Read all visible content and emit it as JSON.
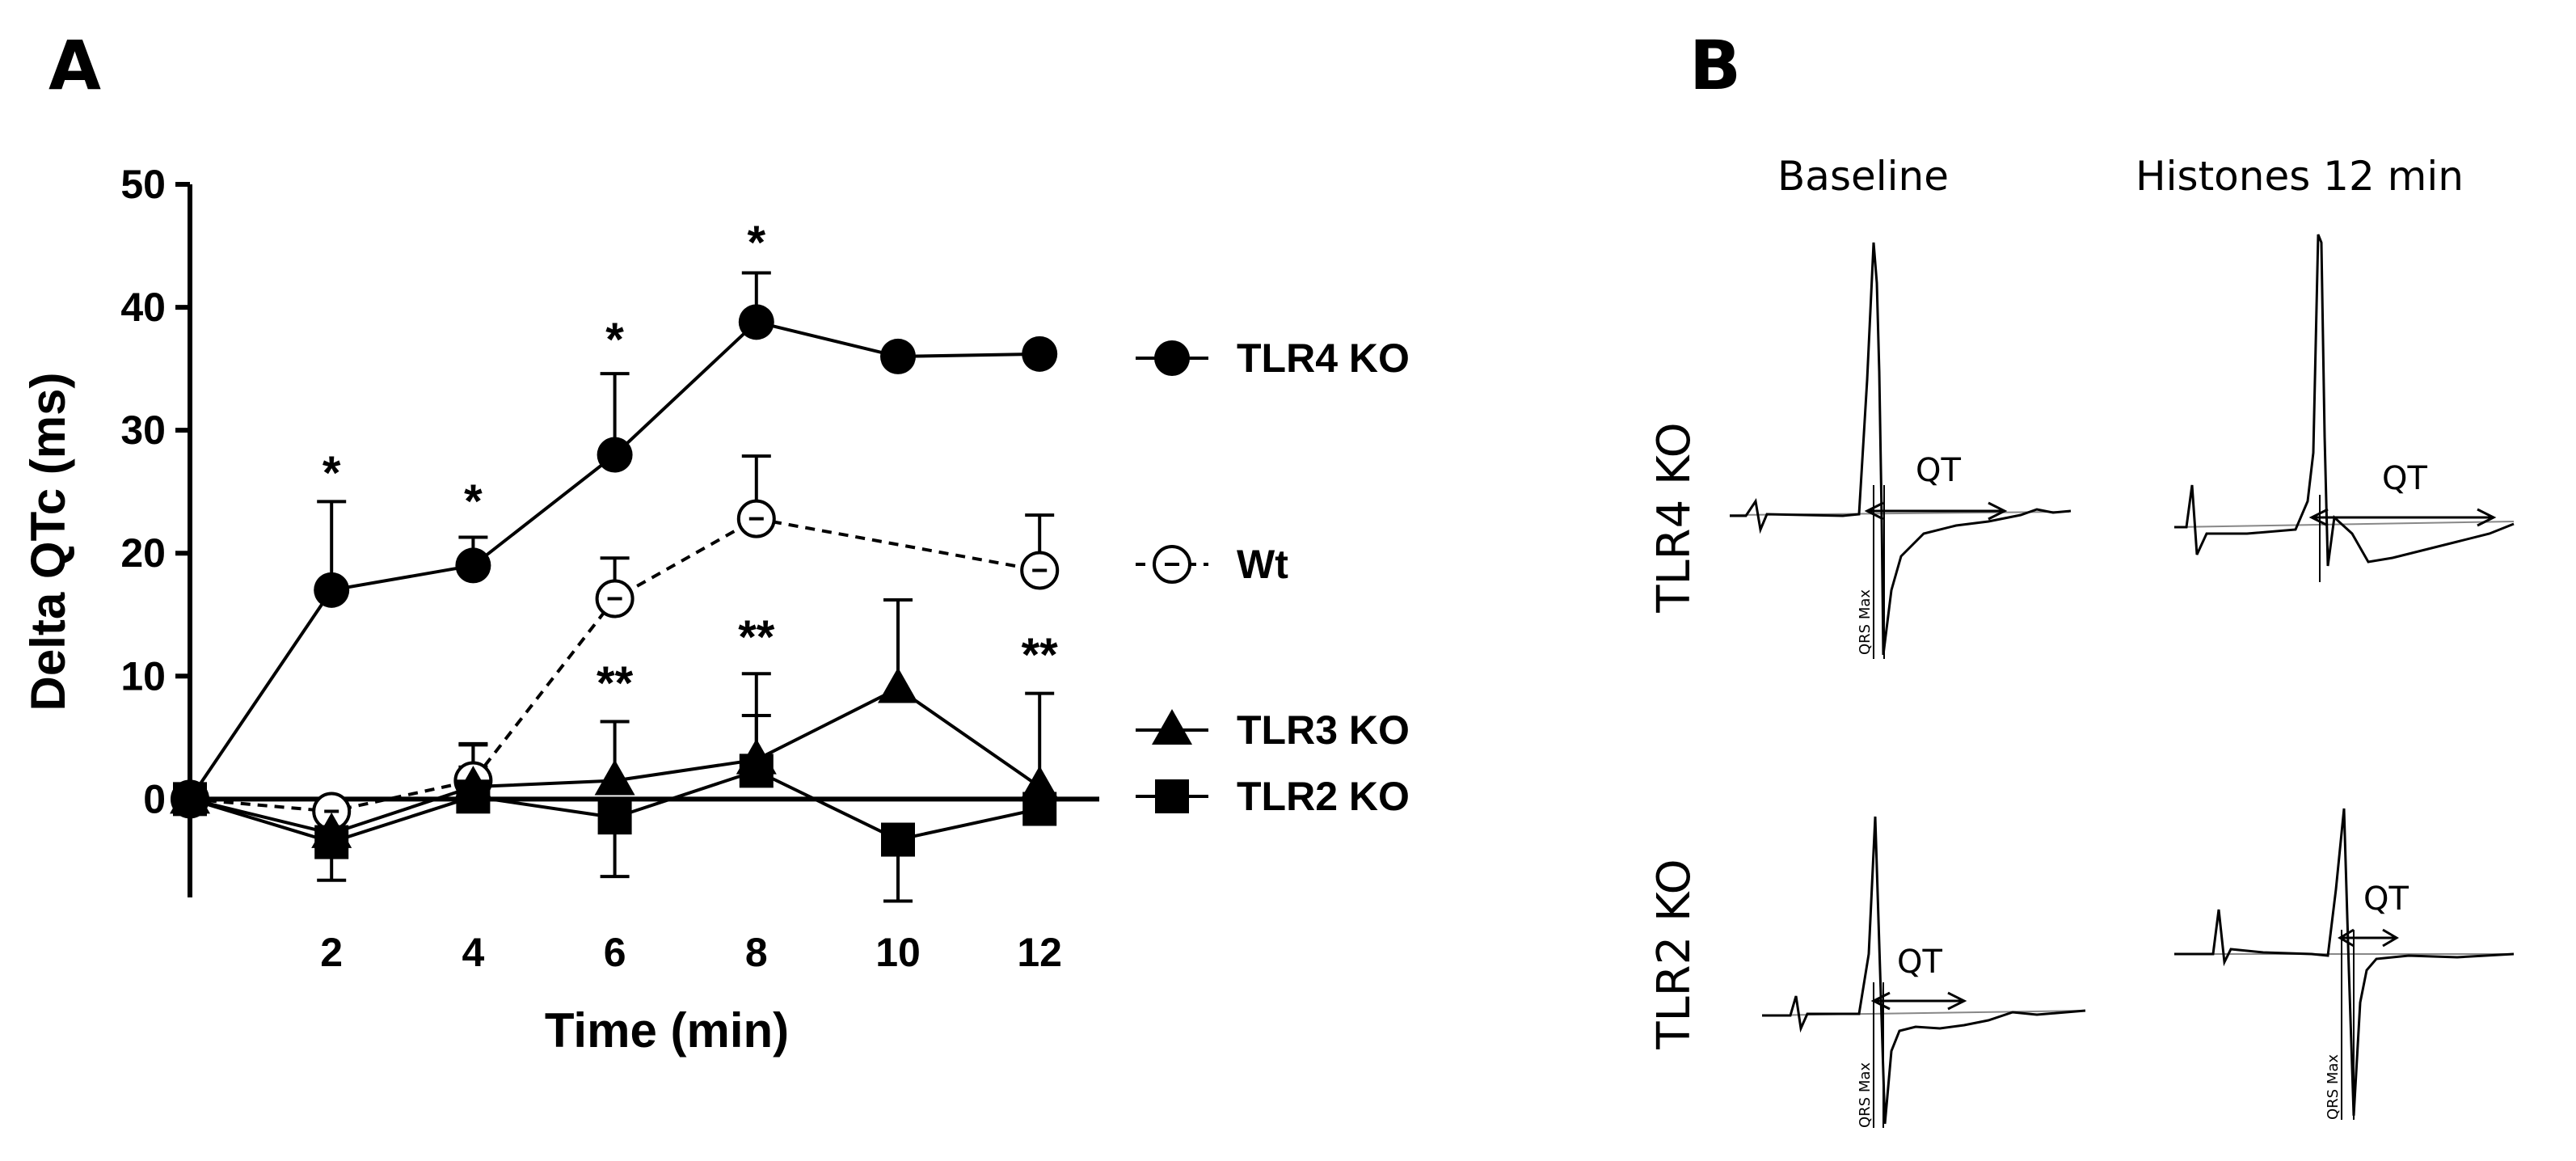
{
  "panels": {
    "a": "A",
    "b": "B"
  },
  "chart_data": {
    "type": "line",
    "title": "",
    "xlabel": "Time (min)",
    "ylabel": "Delta QTc (ms)",
    "xlim": [
      0,
      12.5
    ],
    "ylim": [
      -8,
      50
    ],
    "x_ticks": [
      2,
      4,
      6,
      8,
      10,
      12
    ],
    "y_ticks": [
      0,
      10,
      20,
      30,
      40,
      50
    ],
    "x": [
      0,
      2,
      4,
      6,
      8,
      10,
      12
    ],
    "series": [
      {
        "name": "TLR4 KO",
        "marker": "filled-circle",
        "line": "solid",
        "values": [
          0,
          17,
          19,
          28,
          38.8,
          36,
          36.2
        ],
        "error": [
          0,
          7.2,
          2.3,
          6.6,
          4.0,
          0,
          0
        ]
      },
      {
        "name": "Wt",
        "marker": "open-circle",
        "line": "dashed",
        "values": [
          0,
          -1,
          1.5,
          16.3,
          22.8,
          null,
          18.6
        ],
        "error": [
          0,
          1.5,
          3,
          3.3,
          5.1,
          0,
          4.5
        ]
      },
      {
        "name": "TLR3 KO",
        "marker": "filled-triangle",
        "line": "solid",
        "values": [
          0,
          -2.8,
          1,
          1.5,
          3.2,
          9,
          1
        ],
        "error": [
          0,
          1.5,
          3.4,
          4.8,
          7,
          7.2,
          7.6
        ]
      },
      {
        "name": "TLR2 KO",
        "marker": "filled-square",
        "line": "solid",
        "values": [
          0,
          -3.5,
          0.2,
          -1.5,
          2.3,
          -3.3,
          -0.8
        ],
        "error": [
          0,
          3.1,
          2.4,
          4.8,
          4.5,
          5,
          1.2
        ]
      }
    ],
    "annotations": [
      {
        "x": 2,
        "text": "*"
      },
      {
        "x": 4,
        "text": "*"
      },
      {
        "x": 6,
        "text": "*"
      },
      {
        "x": 8,
        "text": "*"
      },
      {
        "x": 6,
        "text": "**"
      },
      {
        "x": 8,
        "text": "**"
      },
      {
        "x": 12,
        "text": "**"
      }
    ],
    "legend_position": "right"
  },
  "ecg": {
    "col_titles": [
      "Baseline",
      "Histones 12 min"
    ],
    "row_labels": [
      "TLR4 KO",
      "TLR2 KO"
    ],
    "qt_label": "QT",
    "marker_label": "QRS Max"
  }
}
